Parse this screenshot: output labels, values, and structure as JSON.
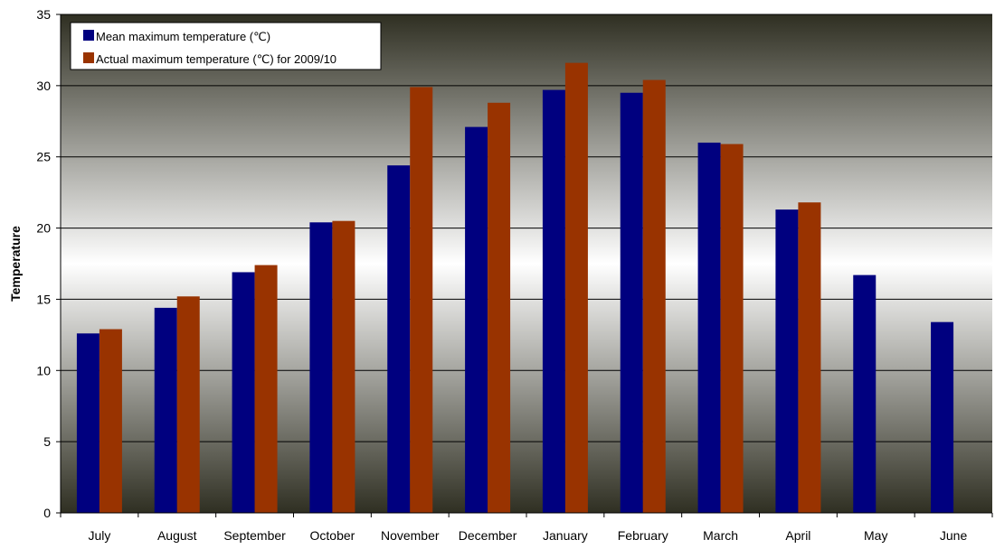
{
  "colors": {
    "mean": "#00007f",
    "actual": "#993300",
    "plot_top": "#2f2f22",
    "plot_mid": "#ffffff",
    "plot_bottom": "#2f2f22",
    "gridline": "#000000",
    "axis": "#000000"
  },
  "chart_data": {
    "type": "bar",
    "title": "",
    "xlabel": "",
    "ylabel": "Temperature",
    "ylim": [
      0,
      35
    ],
    "yticks": [
      0,
      5,
      10,
      15,
      20,
      25,
      30,
      35
    ],
    "grid": true,
    "legend_position": "top-left",
    "categories": [
      "July",
      "August",
      "September",
      "October",
      "November",
      "December",
      "January",
      "February",
      "March",
      "April",
      "May",
      "June"
    ],
    "series": [
      {
        "name": "Mean maximum temperature (℃)",
        "values": [
          12.6,
          14.4,
          16.9,
          20.4,
          24.4,
          27.1,
          29.7,
          29.5,
          26.0,
          21.3,
          16.7,
          13.4
        ]
      },
      {
        "name": "Actual maximum temperature (℃) for 2009/10",
        "values": [
          12.9,
          15.2,
          17.4,
          20.5,
          29.9,
          28.8,
          31.6,
          30.4,
          25.9,
          21.8,
          null,
          null
        ]
      }
    ]
  }
}
